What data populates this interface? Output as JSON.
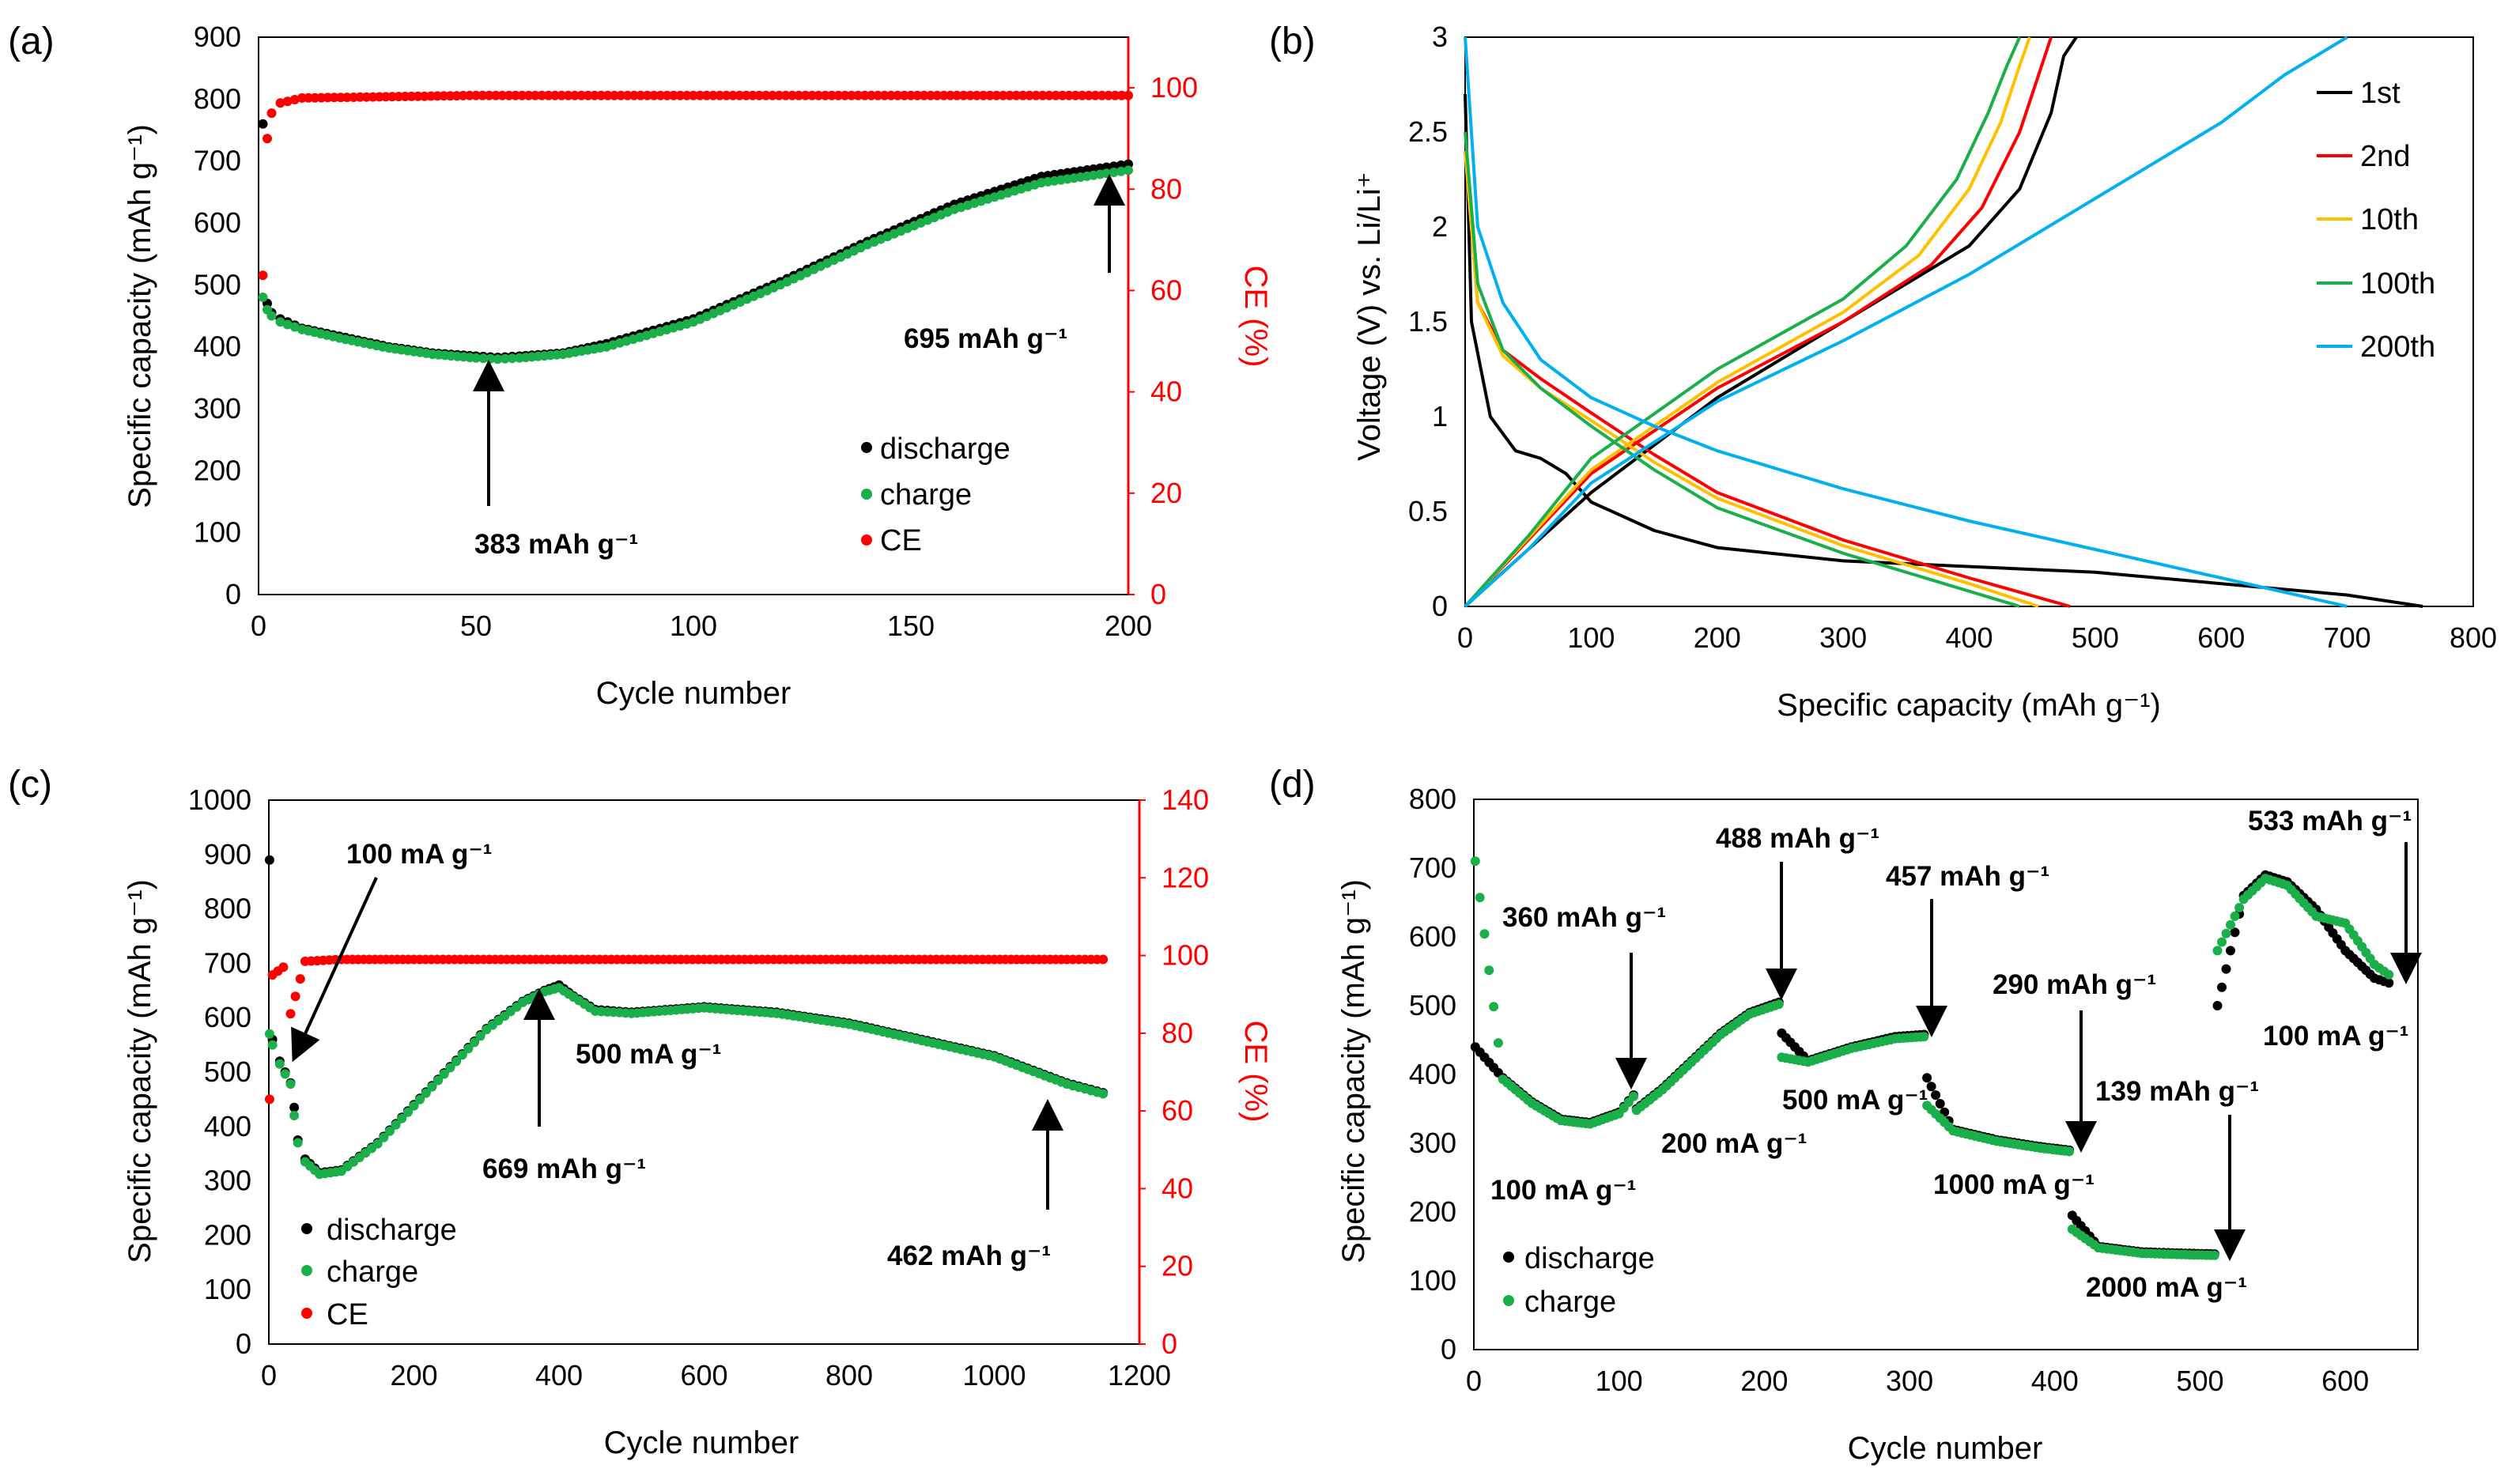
{
  "chart_data": [
    {
      "panel_label": "(a)",
      "type": "scatter",
      "xlabel": "Cycle number",
      "ylabel": "Specific capacity (mAh g⁻¹)",
      "y2label": "CE (%)",
      "xlim": [
        0,
        200
      ],
      "ylim": [
        0,
        900
      ],
      "y2lim": [
        0,
        110
      ],
      "xticks": [
        "0",
        "50",
        "100",
        "150",
        "200"
      ],
      "yticks": [
        "0",
        "100",
        "200",
        "300",
        "400",
        "500",
        "600",
        "700",
        "800",
        "900"
      ],
      "y2ticks": [
        "0",
        "20",
        "40",
        "60",
        "80",
        "100"
      ],
      "legend": [
        "discharge",
        "charge",
        "CE"
      ],
      "colors": {
        "discharge": "#000000",
        "charge": "#1aaf4b",
        "CE": "#ff0000"
      },
      "series": [
        {
          "name": "discharge",
          "x": [
            1,
            2,
            3,
            5,
            10,
            20,
            30,
            40,
            50,
            55,
            60,
            70,
            80,
            100,
            120,
            140,
            160,
            180,
            195,
            200
          ],
          "y": [
            760,
            470,
            455,
            445,
            430,
            415,
            400,
            390,
            385,
            383,
            385,
            390,
            405,
            445,
            505,
            570,
            630,
            675,
            690,
            695
          ]
        },
        {
          "name": "charge",
          "x": [
            1,
            2,
            3,
            5,
            10,
            20,
            30,
            40,
            50,
            55,
            60,
            70,
            80,
            100,
            120,
            140,
            160,
            180,
            195,
            200
          ],
          "y": [
            480,
            460,
            450,
            440,
            428,
            412,
            398,
            388,
            382,
            380,
            382,
            388,
            400,
            440,
            500,
            565,
            622,
            665,
            680,
            685
          ]
        },
        {
          "name": "CE",
          "x": [
            1,
            2,
            3,
            5,
            10,
            50,
            100,
            150,
            200
          ],
          "y": [
            63,
            90,
            95,
            97,
            98,
            98.5,
            98.5,
            98.5,
            98.5
          ]
        }
      ],
      "annotations": [
        "383 mAh g⁻¹",
        "695 mAh g⁻¹"
      ]
    },
    {
      "panel_label": "(b)",
      "type": "line",
      "xlabel": "Specific capacity (mAh g⁻¹)",
      "ylabel": "Voltage (V) vs. Li/Li⁺",
      "xlim": [
        0,
        800
      ],
      "ylim": [
        0,
        3
      ],
      "xticks": [
        "0",
        "100",
        "200",
        "300",
        "400",
        "500",
        "600",
        "700",
        "800"
      ],
      "yticks": [
        "0",
        "0.5",
        "1",
        "1.5",
        "2",
        "2.5",
        "3"
      ],
      "legend": [
        "1st",
        "2nd",
        "10th",
        "100th",
        "200th"
      ],
      "colors": {
        "1st": "#000000",
        "2nd": "#ff0000",
        "10th": "#ffc000",
        "100th": "#1aaf4b",
        "200th": "#00b0f0"
      },
      "series": [
        {
          "name": "1st",
          "discharge": {
            "x": [
              0,
              5,
              20,
              40,
              60,
              80,
              100,
              150,
              200,
              300,
              500,
              700,
              760
            ],
            "y": [
              2.7,
              1.5,
              1.0,
              0.82,
              0.78,
              0.7,
              0.55,
              0.4,
              0.31,
              0.24,
              0.18,
              0.06,
              0
            ]
          },
          "charge": {
            "x": [
              0,
              50,
              100,
              200,
              300,
              400,
              440,
              465,
              475,
              485
            ],
            "y": [
              0,
              0.3,
              0.6,
              1.1,
              1.5,
              1.9,
              2.2,
              2.6,
              2.9,
              3.0
            ]
          }
        },
        {
          "name": "2nd",
          "discharge": {
            "x": [
              0,
              10,
              30,
              60,
              100,
              150,
              200,
              300,
              400,
              480
            ],
            "y": [
              2.4,
              1.6,
              1.35,
              1.2,
              1.02,
              0.8,
              0.6,
              0.35,
              0.15,
              0
            ]
          },
          "charge": {
            "x": [
              0,
              50,
              100,
              200,
              300,
              370,
              410,
              440,
              455,
              465
            ],
            "y": [
              0,
              0.35,
              0.7,
              1.15,
              1.5,
              1.8,
              2.1,
              2.5,
              2.8,
              3.0
            ]
          }
        },
        {
          "name": "10th",
          "discharge": {
            "x": [
              0,
              10,
              30,
              60,
              100,
              150,
              200,
              300,
              400,
              455
            ],
            "y": [
              2.4,
              1.6,
              1.32,
              1.15,
              0.98,
              0.76,
              0.57,
              0.32,
              0.12,
              0
            ]
          },
          "charge": {
            "x": [
              0,
              50,
              100,
              200,
              300,
              360,
              400,
              425,
              440,
              448
            ],
            "y": [
              0,
              0.36,
              0.72,
              1.18,
              1.55,
              1.85,
              2.2,
              2.55,
              2.85,
              3.0
            ]
          }
        },
        {
          "name": "100th",
          "discharge": {
            "x": [
              0,
              10,
              30,
              60,
              100,
              150,
              200,
              300,
              400,
              440
            ],
            "y": [
              2.5,
              1.7,
              1.35,
              1.15,
              0.95,
              0.72,
              0.52,
              0.28,
              0.08,
              0
            ]
          },
          "charge": {
            "x": [
              0,
              50,
              100,
              200,
              300,
              350,
              390,
              415,
              430,
              440
            ],
            "y": [
              0,
              0.37,
              0.78,
              1.25,
              1.62,
              1.9,
              2.25,
              2.6,
              2.85,
              3.0
            ]
          }
        },
        {
          "name": "200th",
          "discharge": {
            "x": [
              0,
              10,
              30,
              60,
              100,
              150,
              200,
              300,
              400,
              500,
              600,
              700
            ],
            "y": [
              3.0,
              2.0,
              1.6,
              1.3,
              1.1,
              0.95,
              0.82,
              0.62,
              0.45,
              0.3,
              0.15,
              0
            ]
          },
          "charge": {
            "x": [
              0,
              50,
              100,
              200,
              300,
              400,
              500,
              600,
              650,
              700
            ],
            "y": [
              0,
              0.3,
              0.65,
              1.08,
              1.4,
              1.75,
              2.15,
              2.55,
              2.8,
              3.0
            ]
          }
        }
      ]
    },
    {
      "panel_label": "(c)",
      "type": "scatter",
      "xlabel": "Cycle number",
      "ylabel": "Specific capacity (mAh g⁻¹)",
      "y2label": "CE (%)",
      "xlim": [
        0,
        1200
      ],
      "ylim": [
        0,
        1000
      ],
      "y2lim": [
        0,
        140
      ],
      "xticks": [
        "0",
        "200",
        "400",
        "600",
        "800",
        "1000",
        "1200"
      ],
      "yticks": [
        "0",
        "100",
        "200",
        "300",
        "400",
        "500",
        "600",
        "700",
        "800",
        "900",
        "1000"
      ],
      "y2ticks": [
        "0",
        "20",
        "40",
        "60",
        "80",
        "100",
        "120",
        "140"
      ],
      "legend": [
        "discharge",
        "charge",
        "CE"
      ],
      "colors": {
        "discharge": "#000000",
        "charge": "#1aaf4b",
        "CE": "#ff0000"
      },
      "series": [
        {
          "name": "discharge",
          "x": [
            1,
            5,
            15,
            30,
            35,
            40,
            50,
            70,
            100,
            150,
            200,
            250,
            300,
            350,
            380,
            400,
            420,
            450,
            500,
            600,
            700,
            800,
            900,
            1000,
            1100,
            1150
          ],
          "y": [
            890,
            560,
            520,
            480,
            435,
            375,
            340,
            315,
            320,
            370,
            440,
            510,
            580,
            630,
            650,
            660,
            640,
            615,
            610,
            620,
            610,
            590,
            560,
            530,
            480,
            462
          ]
        },
        {
          "name": "charge",
          "x": [
            1,
            5,
            15,
            30,
            35,
            40,
            50,
            70,
            100,
            150,
            200,
            250,
            300,
            350,
            380,
            400,
            420,
            450,
            500,
            600,
            700,
            800,
            900,
            1000,
            1100,
            1150
          ],
          "y": [
            570,
            550,
            515,
            478,
            420,
            370,
            335,
            312,
            318,
            368,
            438,
            508,
            578,
            628,
            648,
            655,
            638,
            612,
            608,
            618,
            608,
            588,
            558,
            528,
            478,
            460
          ]
        },
        {
          "name": "CE",
          "x": [
            1,
            5,
            20,
            30,
            50,
            100,
            200,
            400,
            600,
            800,
            1000,
            1100,
            1150
          ],
          "y": [
            63,
            95,
            97,
            85,
            98.5,
            99,
            99,
            99,
            99,
            99,
            99,
            99,
            99
          ]
        }
      ],
      "annotations": [
        "100 mA g⁻¹",
        "669 mAh g⁻¹",
        "500 mA g⁻¹",
        "462 mAh g⁻¹"
      ]
    },
    {
      "panel_label": "(d)",
      "type": "scatter",
      "xlabel": "Cycle number",
      "ylabel": "Specific capacity (mAh g⁻¹)",
      "xlim": [
        0,
        650
      ],
      "ylim": [
        0,
        800
      ],
      "xticks": [
        "0",
        "100",
        "200",
        "300",
        "400",
        "500",
        "600"
      ],
      "yticks": [
        "0",
        "100",
        "200",
        "300",
        "400",
        "500",
        "600",
        "700",
        "800"
      ],
      "legend": [
        "discharge",
        "charge"
      ],
      "colors": {
        "discharge": "#000000",
        "charge": "#1aaf4b"
      },
      "series": [
        {
          "name": "discharge",
          "x": [
            1,
            20,
            40,
            60,
            80,
            100,
            110,
            112,
            130,
            150,
            170,
            190,
            210,
            212,
            230,
            260,
            290,
            310,
            312,
            330,
            360,
            390,
            410,
            412,
            430,
            460,
            490,
            510,
            512,
            530,
            545,
            560,
            580,
            600,
            620,
            630
          ],
          "y": [
            440,
            395,
            360,
            335,
            330,
            345,
            370,
            350,
            380,
            420,
            460,
            490,
            505,
            460,
            420,
            440,
            455,
            458,
            395,
            320,
            305,
            295,
            290,
            195,
            150,
            142,
            140,
            139,
            500,
            660,
            690,
            680,
            640,
            580,
            540,
            533
          ]
        },
        {
          "name": "charge",
          "x": [
            1,
            20,
            40,
            60,
            80,
            100,
            110,
            112,
            130,
            150,
            170,
            190,
            210,
            212,
            230,
            260,
            290,
            310,
            312,
            330,
            360,
            390,
            410,
            412,
            430,
            460,
            490,
            510,
            512,
            530,
            545,
            560,
            580,
            600,
            620,
            630
          ],
          "y": [
            710,
            393,
            358,
            333,
            328,
            343,
            368,
            348,
            378,
            418,
            458,
            488,
            502,
            425,
            418,
            438,
            452,
            455,
            355,
            318,
            303,
            293,
            288,
            175,
            148,
            140,
            138,
            137,
            580,
            655,
            685,
            675,
            630,
            620,
            560,
            545
          ]
        }
      ],
      "annotations": [
        "360 mAh g⁻¹",
        "100 mA g⁻¹",
        "200 mA g⁻¹",
        "488 mAh g⁻¹",
        "457 mAh g⁻¹",
        "500 mA g⁻¹",
        "290 mAh g⁻¹",
        "1000 mA g⁻¹",
        "139 mAh g⁻¹",
        "2000 mA g⁻¹",
        "533 mAh g⁻¹",
        "100 mA g⁻¹"
      ]
    }
  ]
}
